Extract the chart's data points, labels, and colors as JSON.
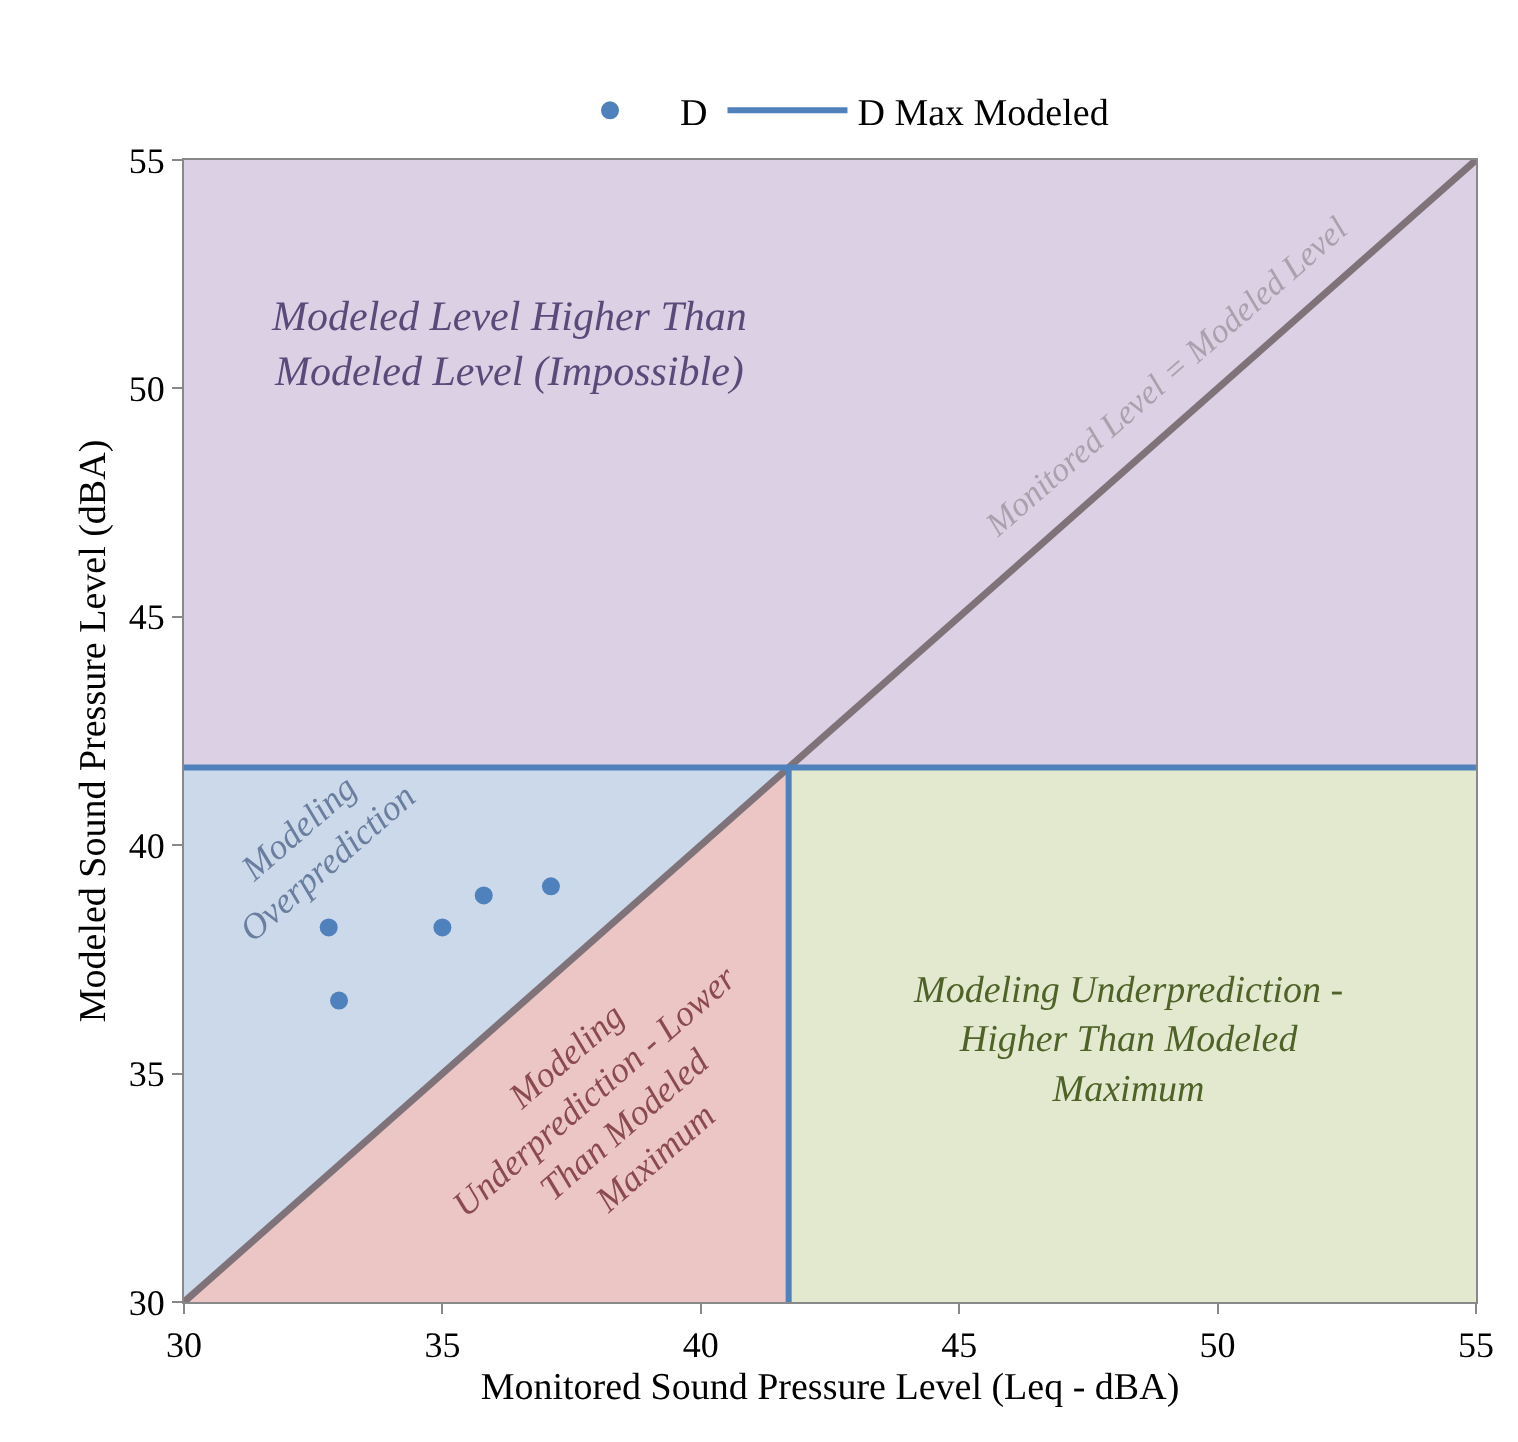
{
  "chart_data": {
    "type": "scatter",
    "xlabel": "Monitored Sound Pressure Level (Leq - dBA)",
    "ylabel": "Modeled Sound Pressure Level (dBA)",
    "xlim": [
      30,
      55
    ],
    "ylim": [
      30,
      55
    ],
    "xticks": [
      30,
      35,
      40,
      45,
      50,
      55
    ],
    "yticks": [
      30,
      35,
      40,
      45,
      50,
      55
    ],
    "grid": false,
    "legend": "top",
    "series": [
      {
        "type": "area",
        "marker": "none",
        "color": "#ecc6c4",
        "x": [
          30,
          41.7
        ],
        "values": [
          30,
          41.7
        ]
      },
      {
        "type": "line",
        "marker": "none",
        "color": "#7f7279",
        "x": [
          30,
          55
        ],
        "values": [
          30,
          55
        ]
      },
      {
        "type": "line",
        "marker": "none",
        "name": "D Max Modeled",
        "color": "#4f81bd",
        "x": [
          30,
          41.7,
          41.7,
          41.7,
          55
        ],
        "values": [
          41.7,
          41.7,
          30,
          41.7,
          41.7
        ]
      },
      {
        "name": "D",
        "marker": "circle",
        "color": "#4f81bd",
        "x": [
          32.8,
          33.0,
          35.0,
          35.8,
          37.1
        ],
        "values": [
          38.2,
          36.6,
          38.2,
          38.9,
          39.1
        ]
      }
    ],
    "bands": [
      {
        "axis": "x",
        "from": 30,
        "to": 41.7,
        "color": "#ccd9ea"
      },
      {
        "axis": "x",
        "from": 41.7,
        "to": 55,
        "color": "#e3e9cf"
      },
      {
        "axis": "y",
        "from": 41.7,
        "to": 55,
        "color": "#dcd0e4"
      }
    ],
    "annotations": [
      "Modeled Level Higher Than\nModeled Level (Impossible)",
      "Monitored Level = Modeled Level",
      "Modeling\nOverprediction",
      "Modeling\nUnderprediction - Lower\nThan Modeled\nMaximum",
      "Modeling Underprediction -\nHigher Than Modeled\nMaximum"
    ]
  }
}
